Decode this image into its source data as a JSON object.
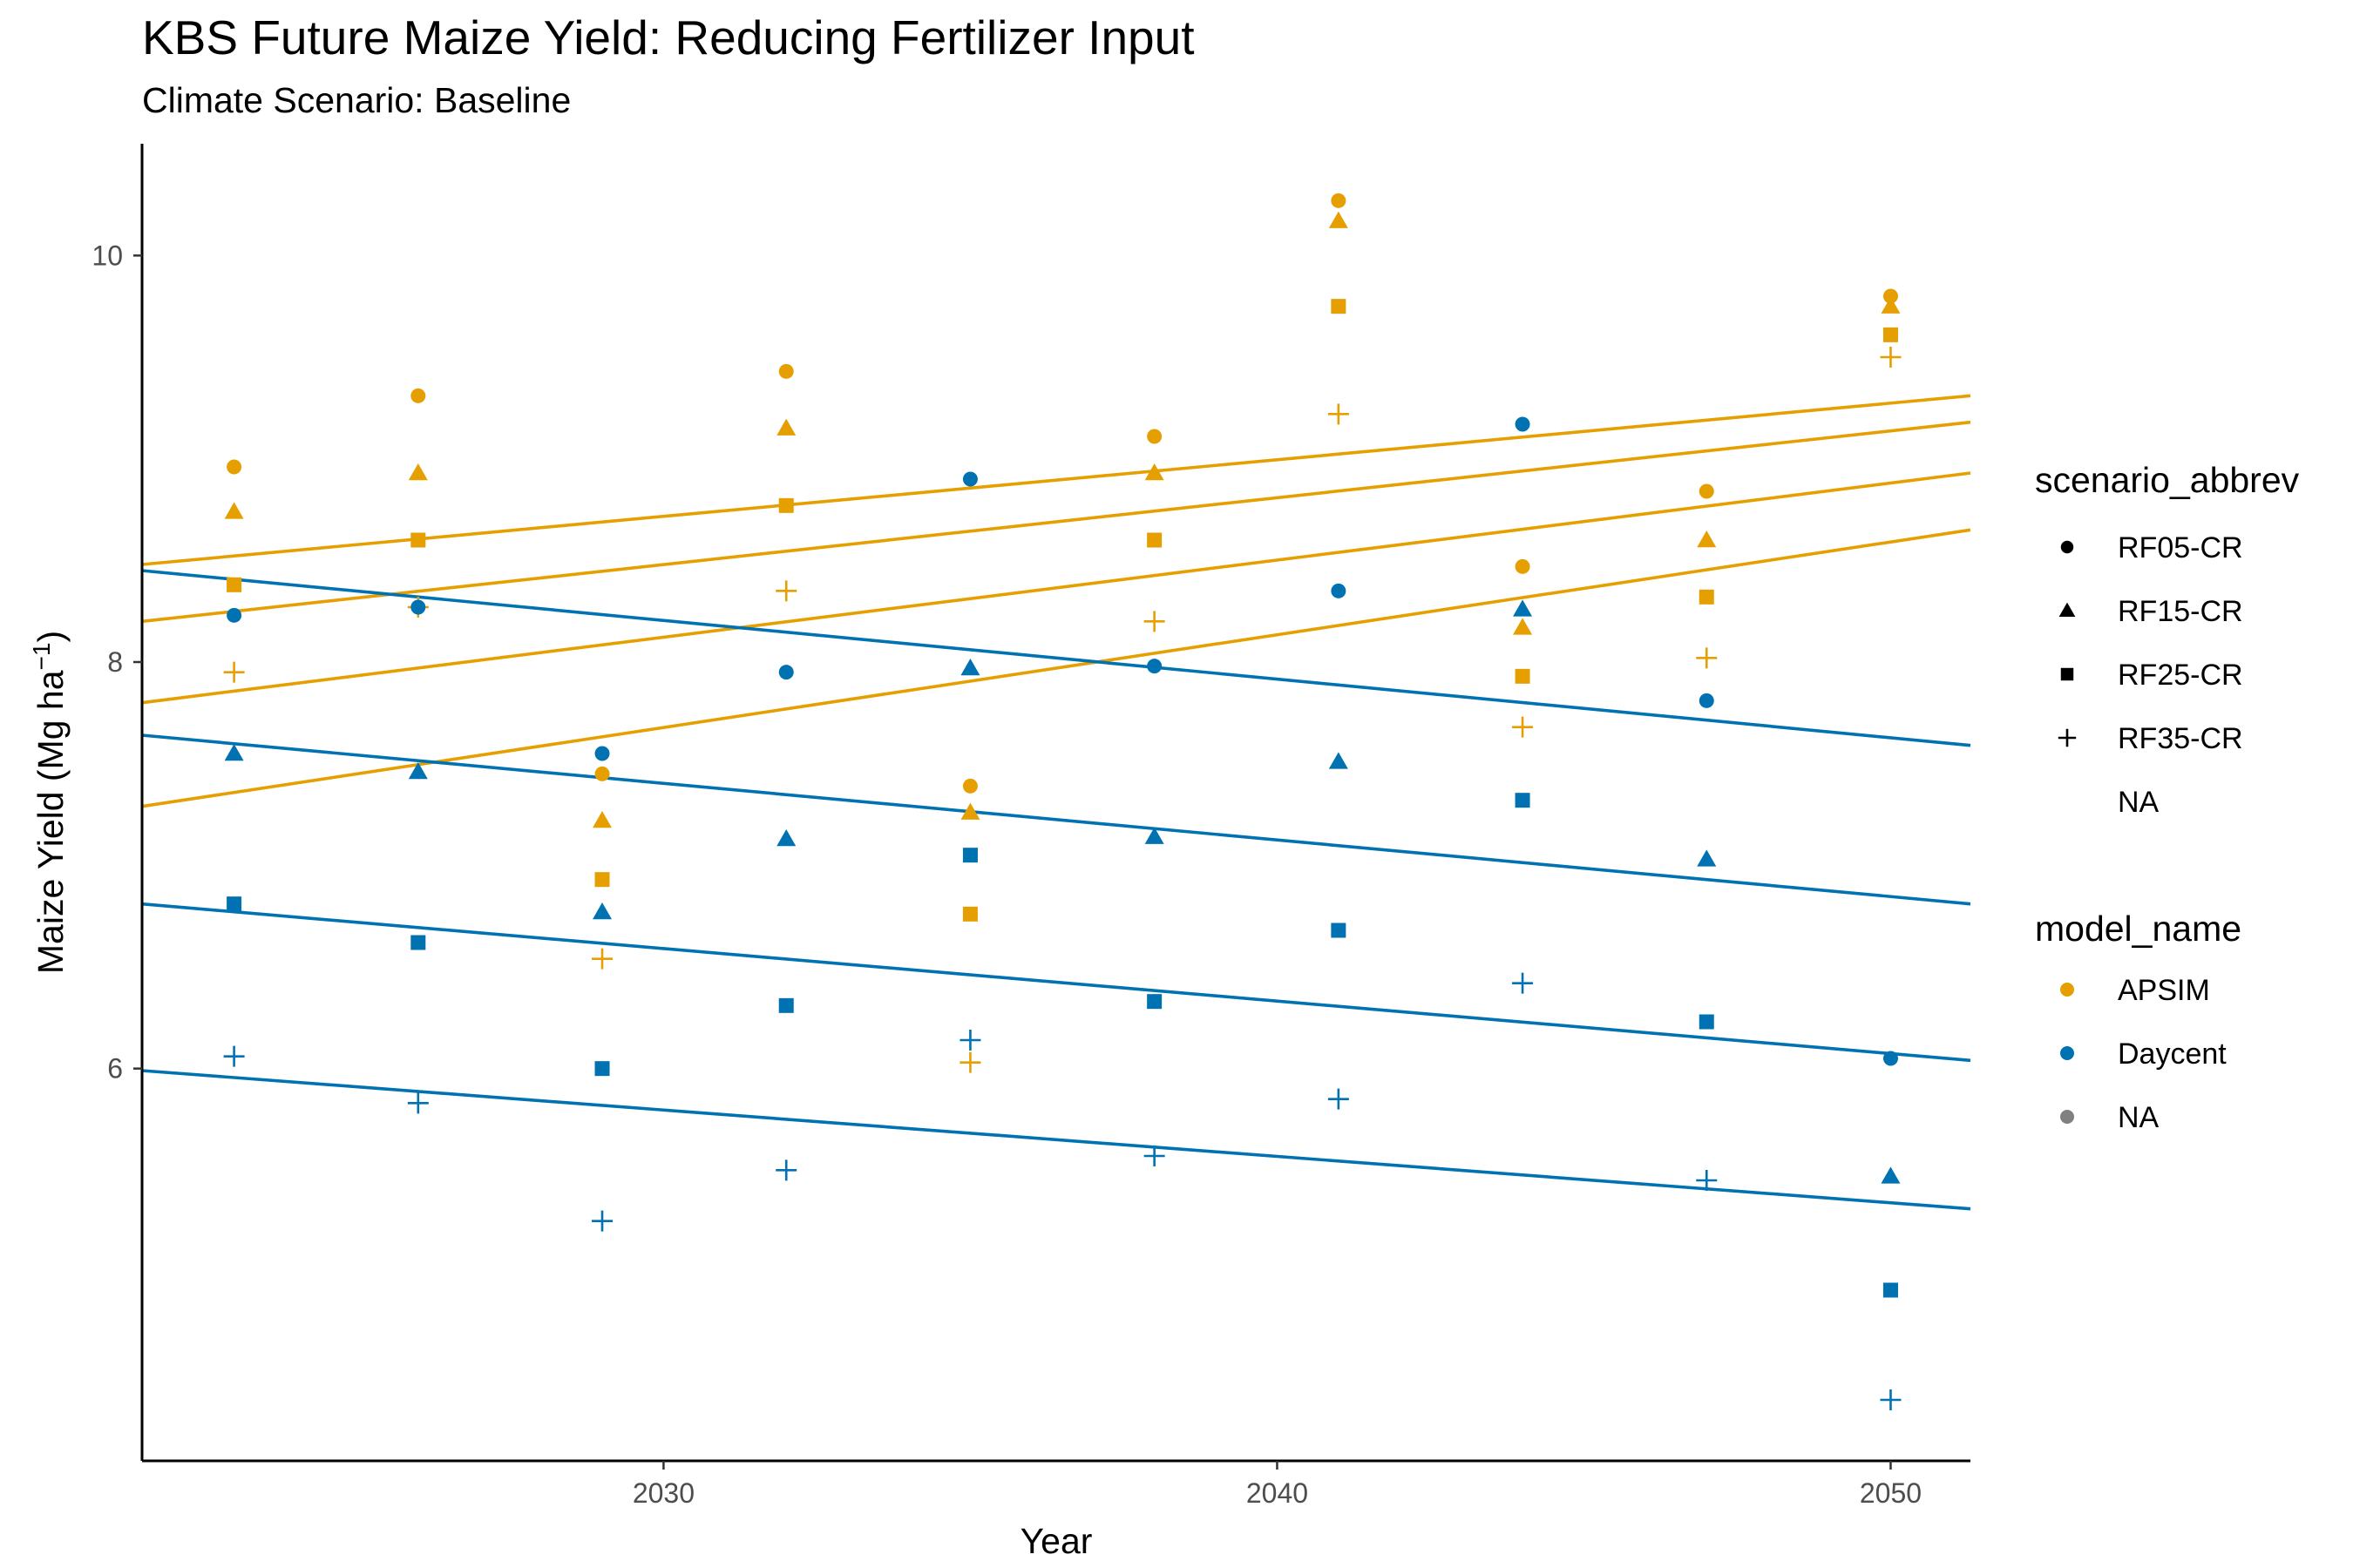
{
  "chart_data": {
    "type": "scatter",
    "title": "KBS Future Maize Yield: Reducing Fertilizer Input",
    "subtitle": "Climate Scenario: Baseline",
    "xlabel": "Year",
    "ylabel": "Maize Yield (Mg ha",
    "ylabel_superscript": "−1",
    "ylabel_suffix": ")",
    "xlim": [
      2021.5,
      2051.3
    ],
    "ylim": [
      4.07,
      10.55
    ],
    "x_ticks": [
      2030,
      2040,
      2050
    ],
    "y_ticks": [
      6,
      8,
      10
    ],
    "grid": false,
    "legend_position": "right",
    "colors": {
      "APSIM": "#E69F00",
      "Daycent": "#0072B2",
      "NA": "#808080"
    },
    "legends": {
      "shape": {
        "title": "scenario_abbrev",
        "entries": [
          {
            "label": "RF05-CR",
            "shape": "circle"
          },
          {
            "label": "RF15-CR",
            "shape": "triangle"
          },
          {
            "label": "RF25-CR",
            "shape": "square"
          },
          {
            "label": "RF35-CR",
            "shape": "plus"
          },
          {
            "label": "NA",
            "shape": "none"
          }
        ]
      },
      "color": {
        "title": "model_name",
        "entries": [
          {
            "label": "APSIM",
            "color": "#E69F00"
          },
          {
            "label": "Daycent",
            "color": "#0072B2"
          },
          {
            "label": "NA",
            "color": "#808080"
          }
        ]
      }
    },
    "series": [
      {
        "model": "APSIM",
        "scenario": "RF05-CR",
        "shape": "circle",
        "x": [
          2023,
          2026,
          2029,
          2032,
          2035,
          2038,
          2041,
          2044,
          2047,
          2050
        ],
        "y": [
          8.96,
          9.31,
          7.45,
          9.43,
          7.39,
          9.11,
          10.27,
          8.47,
          8.84,
          9.8
        ],
        "trend": [
          8.48,
          9.31
        ]
      },
      {
        "model": "APSIM",
        "scenario": "RF15-CR",
        "shape": "triangle",
        "x": [
          2023,
          2026,
          2029,
          2032,
          2035,
          2038,
          2041,
          2044,
          2047,
          2050
        ],
        "y": [
          8.74,
          8.93,
          7.22,
          9.15,
          7.26,
          8.93,
          10.17,
          8.17,
          8.6,
          9.75
        ],
        "trend": [
          8.2,
          9.18
        ]
      },
      {
        "model": "APSIM",
        "scenario": "RF25-CR",
        "shape": "square",
        "x": [
          2023,
          2026,
          2029,
          2032,
          2035,
          2038,
          2041,
          2044,
          2047,
          2050
        ],
        "y": [
          8.38,
          8.6,
          6.93,
          8.77,
          6.76,
          8.6,
          9.75,
          7.93,
          8.32,
          9.61
        ],
        "trend": [
          7.8,
          8.93
        ]
      },
      {
        "model": "APSIM",
        "scenario": "RF35-CR",
        "shape": "plus",
        "x": [
          2023,
          2026,
          2029,
          2032,
          2035,
          2038,
          2041,
          2044,
          2047,
          2050
        ],
        "y": [
          7.95,
          8.27,
          6.54,
          8.35,
          6.03,
          8.2,
          9.22,
          7.68,
          8.02,
          9.5
        ],
        "trend": [
          7.29,
          8.65
        ]
      },
      {
        "model": "Daycent",
        "scenario": "RF05-CR",
        "shape": "circle",
        "x": [
          2023,
          2026,
          2029,
          2032,
          2035,
          2038,
          2041,
          2044,
          2047,
          2050
        ],
        "y": [
          8.23,
          8.27,
          7.55,
          7.95,
          8.9,
          7.98,
          8.35,
          9.17,
          7.81,
          6.05
        ],
        "trend": [
          8.45,
          7.59
        ]
      },
      {
        "model": "Daycent",
        "scenario": "RF15-CR",
        "shape": "triangle",
        "x": [
          2023,
          2026,
          2029,
          2032,
          2035,
          2038,
          2041,
          2044,
          2047,
          2050
        ],
        "y": [
          7.55,
          7.46,
          6.77,
          7.13,
          7.97,
          7.14,
          7.51,
          8.26,
          7.03,
          5.47
        ],
        "trend": [
          7.64,
          6.81
        ]
      },
      {
        "model": "Daycent",
        "scenario": "RF25-CR",
        "shape": "square",
        "x": [
          2023,
          2026,
          2029,
          2032,
          2035,
          2038,
          2041,
          2044,
          2047,
          2050
        ],
        "y": [
          6.81,
          6.62,
          6.0,
          6.31,
          7.05,
          6.33,
          6.68,
          7.32,
          6.23,
          4.91
        ],
        "trend": [
          6.81,
          6.04
        ]
      },
      {
        "model": "Daycent",
        "scenario": "RF35-CR",
        "shape": "plus",
        "x": [
          2023,
          2026,
          2029,
          2032,
          2035,
          2038,
          2041,
          2044,
          2047,
          2050
        ],
        "y": [
          6.06,
          5.83,
          5.25,
          5.5,
          6.14,
          5.57,
          5.85,
          6.42,
          5.45,
          4.37
        ],
        "trend": [
          5.99,
          5.31
        ]
      }
    ]
  }
}
